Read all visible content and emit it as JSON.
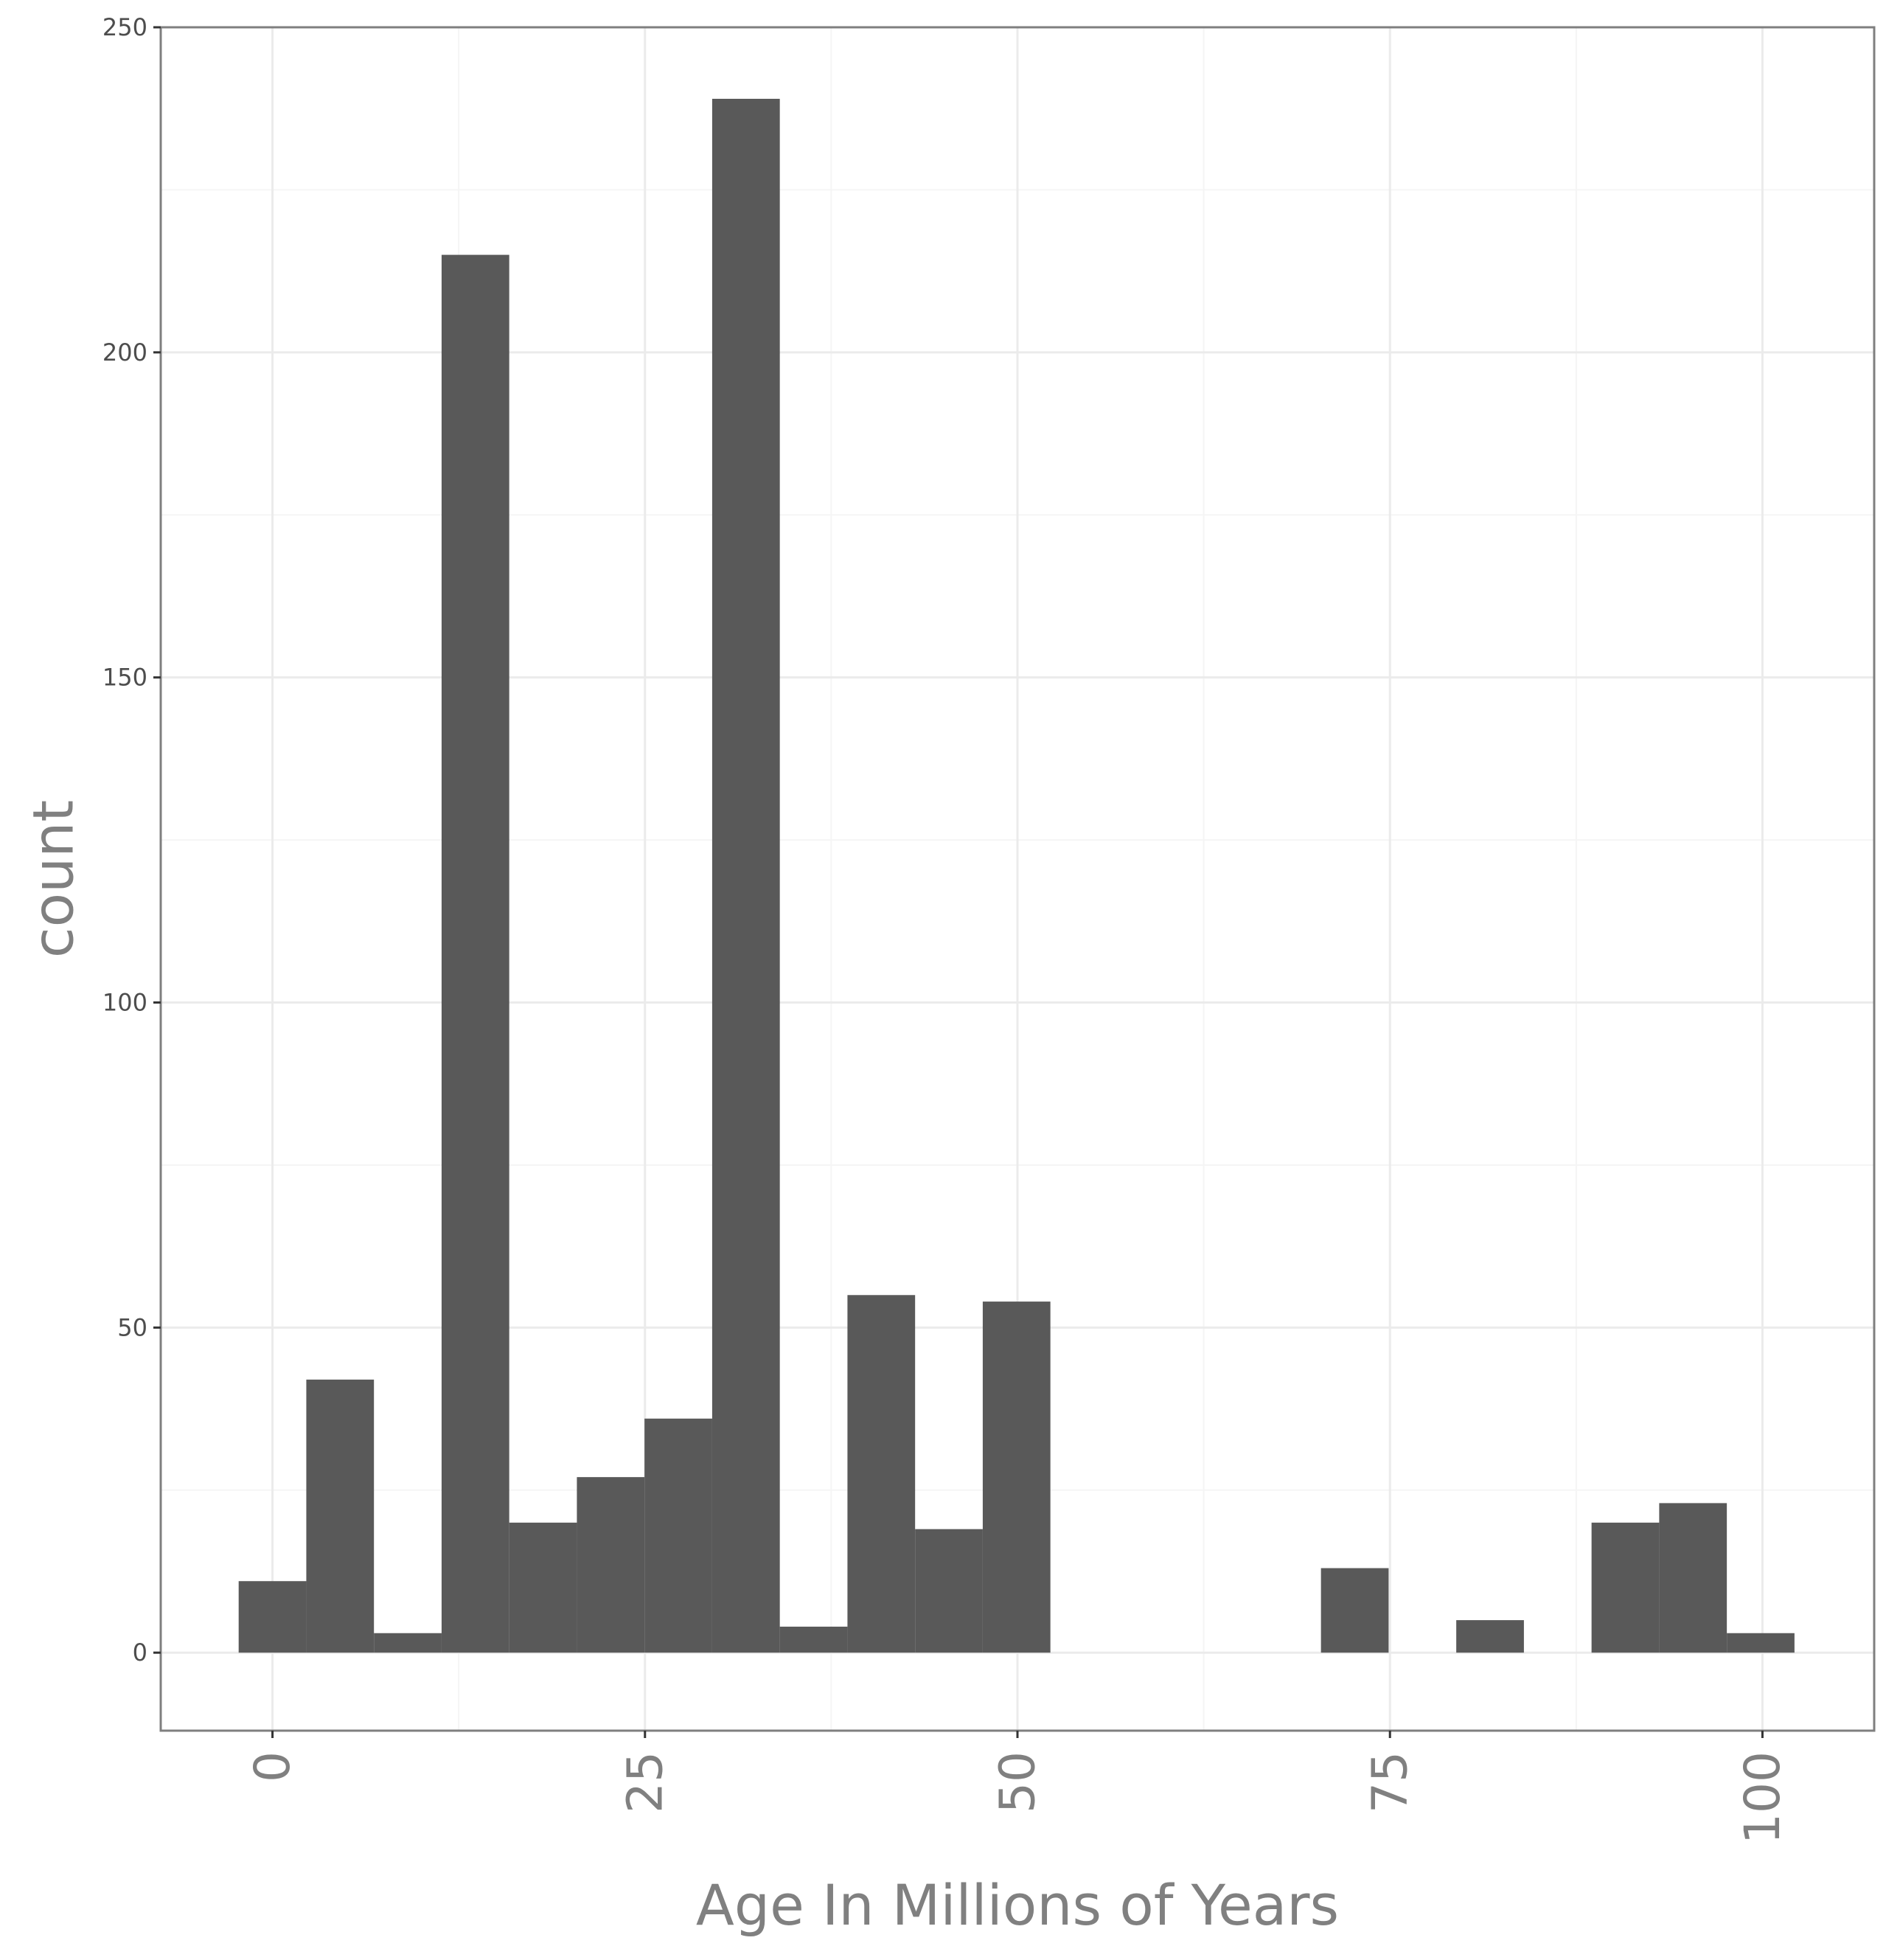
{
  "chart_data": {
    "type": "bar",
    "subtype": "histogram",
    "xlabel": "Age In Millions of Years",
    "ylabel": "count",
    "xlim": [
      -7.5,
      107.5
    ],
    "ylim": [
      -12,
      250
    ],
    "x_ticks": [
      0,
      25,
      50,
      75,
      100
    ],
    "x_tick_labels": [
      "0",
      "25",
      "50",
      "75",
      "100"
    ],
    "y_ticks": [
      0,
      50,
      100,
      150,
      200,
      250
    ],
    "y_tick_labels": [
      "0",
      "50",
      "100",
      "150",
      "200",
      "250"
    ],
    "bin_width": 4.54,
    "bins": [
      {
        "x0": -2.27,
        "x1": 2.27,
        "count": 11
      },
      {
        "x0": 2.27,
        "x1": 6.81,
        "count": 42
      },
      {
        "x0": 6.81,
        "x1": 11.35,
        "count": 3
      },
      {
        "x0": 11.35,
        "x1": 15.89,
        "count": 215
      },
      {
        "x0": 15.89,
        "x1": 20.43,
        "count": 20
      },
      {
        "x0": 20.43,
        "x1": 24.97,
        "count": 27
      },
      {
        "x0": 24.97,
        "x1": 29.51,
        "count": 36
      },
      {
        "x0": 29.51,
        "x1": 34.05,
        "count": 239
      },
      {
        "x0": 34.05,
        "x1": 38.59,
        "count": 4
      },
      {
        "x0": 38.59,
        "x1": 43.13,
        "count": 55
      },
      {
        "x0": 43.13,
        "x1": 47.67,
        "count": 19
      },
      {
        "x0": 47.67,
        "x1": 52.21,
        "count": 54
      },
      {
        "x0": 52.21,
        "x1": 56.75,
        "count": 0
      },
      {
        "x0": 56.75,
        "x1": 61.29,
        "count": 0
      },
      {
        "x0": 61.29,
        "x1": 65.83,
        "count": 0
      },
      {
        "x0": 65.83,
        "x1": 70.37,
        "count": 0
      },
      {
        "x0": 70.37,
        "x1": 74.91,
        "count": 13
      },
      {
        "x0": 74.91,
        "x1": 79.45,
        "count": 0
      },
      {
        "x0": 79.45,
        "x1": 83.99,
        "count": 5
      },
      {
        "x0": 83.99,
        "x1": 88.53,
        "count": 0
      },
      {
        "x0": 88.53,
        "x1": 93.07,
        "count": 20
      },
      {
        "x0": 93.07,
        "x1": 97.61,
        "count": 23
      },
      {
        "x0": 97.61,
        "x1": 102.15,
        "count": 3
      }
    ],
    "grid": true,
    "colors": {
      "bar": "#595959",
      "background": "#ffffff",
      "grid_major": "#ebebeb",
      "grid_minor": "#f5f5f5",
      "panel_border": "#7f7f7f",
      "axis_text": "#808080",
      "y_tick_text": "#4d4d4d"
    }
  }
}
